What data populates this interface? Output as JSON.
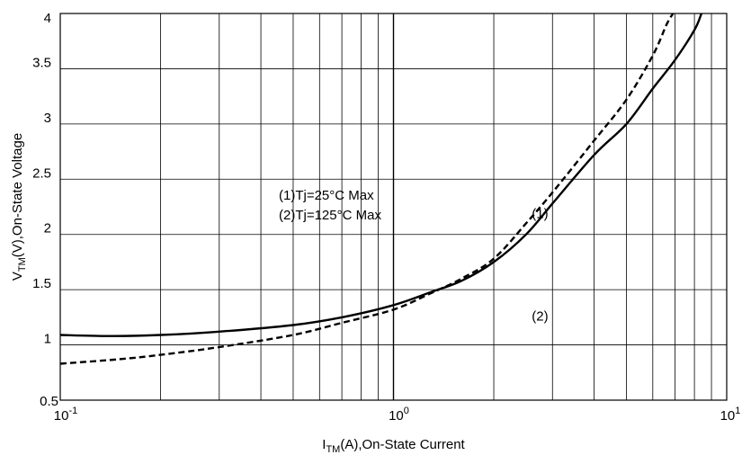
{
  "chart_data": {
    "type": "line",
    "x_scale": "log",
    "xlim": [
      0.1,
      10
    ],
    "ylim": [
      0.5,
      4
    ],
    "grid": true,
    "xlabel": {
      "main": "I",
      "sub": "TM",
      "rest": "(A),On-State Current"
    },
    "ylabel": {
      "main": "V",
      "sub": "TM",
      "rest": "(V),On-State Voltage"
    },
    "x_ticks": [
      {
        "value": 0.1,
        "base": "10",
        "exp": "-1"
      },
      {
        "value": 1,
        "base": "10",
        "exp": "0"
      },
      {
        "value": 10,
        "base": "10",
        "exp": "1"
      }
    ],
    "y_ticks": [
      {
        "value": 0.5,
        "label": "0.5"
      },
      {
        "value": 1,
        "label": "1"
      },
      {
        "value": 1.5,
        "label": "1.5"
      },
      {
        "value": 2,
        "label": "2"
      },
      {
        "value": 2.5,
        "label": "2.5"
      },
      {
        "value": 3,
        "label": "3"
      },
      {
        "value": 3.5,
        "label": "3.5"
      },
      {
        "value": 4,
        "label": "4"
      }
    ],
    "legend": [
      "(1)Tj=25°C Max",
      "(2)Tj=125°C Max"
    ],
    "annotations": [
      {
        "label": "(1)",
        "x": 2.6,
        "y": 2.15
      },
      {
        "label": "(2)",
        "x": 2.6,
        "y": 1.22
      }
    ],
    "series": [
      {
        "label": "(1)",
        "style": "solid",
        "points": [
          [
            0.1,
            1.09
          ],
          [
            0.14,
            1.08
          ],
          [
            0.2,
            1.09
          ],
          [
            0.3,
            1.12
          ],
          [
            0.5,
            1.18
          ],
          [
            0.7,
            1.25
          ],
          [
            1.0,
            1.36
          ],
          [
            1.3,
            1.48
          ],
          [
            1.6,
            1.58
          ],
          [
            2.0,
            1.75
          ],
          [
            2.5,
            2.0
          ],
          [
            3.0,
            2.28
          ],
          [
            4.0,
            2.72
          ],
          [
            5.0,
            3.0
          ],
          [
            6.0,
            3.32
          ],
          [
            7.0,
            3.58
          ],
          [
            8.0,
            3.85
          ],
          [
            8.4,
            4.0
          ]
        ]
      },
      {
        "label": "(2)",
        "style": "dashed",
        "points": [
          [
            0.1,
            0.83
          ],
          [
            0.15,
            0.87
          ],
          [
            0.2,
            0.91
          ],
          [
            0.3,
            0.98
          ],
          [
            0.5,
            1.09
          ],
          [
            0.7,
            1.2
          ],
          [
            1.0,
            1.32
          ],
          [
            1.3,
            1.47
          ],
          [
            1.6,
            1.6
          ],
          [
            2.0,
            1.78
          ],
          [
            2.5,
            2.1
          ],
          [
            3.0,
            2.38
          ],
          [
            4.0,
            2.85
          ],
          [
            5.0,
            3.22
          ],
          [
            6.0,
            3.62
          ],
          [
            6.6,
            3.9
          ],
          [
            6.9,
            4.0
          ]
        ]
      }
    ]
  }
}
